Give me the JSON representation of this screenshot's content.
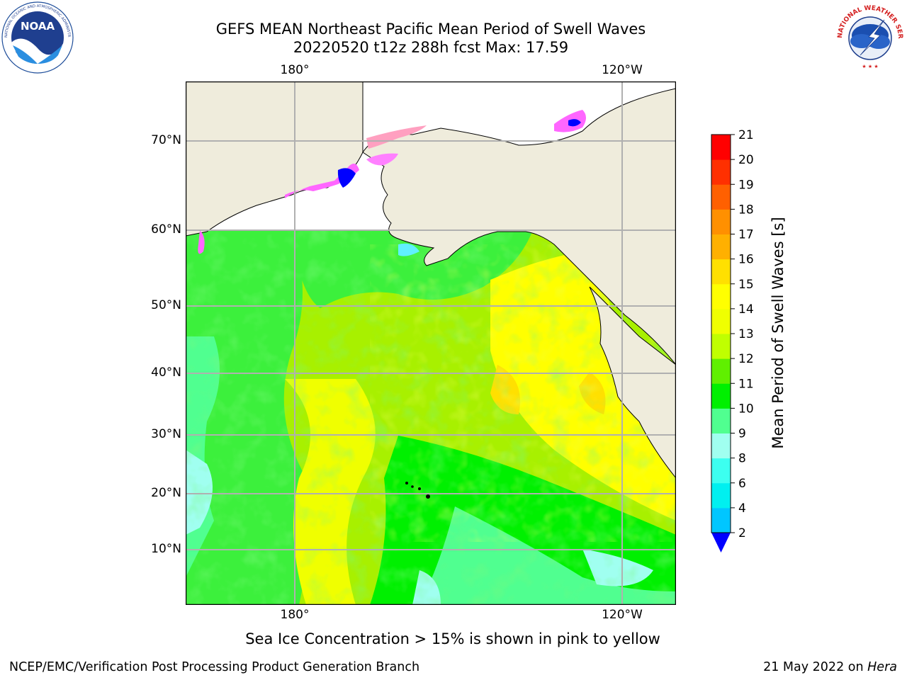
{
  "header": {
    "title_line1": "GEFS MEAN Northeast Pacific Mean Period of Swell Waves",
    "title_line2": "20220520 t12z 288h fcst   Max: 17.59"
  },
  "logos": {
    "noaa_text": "NOAA",
    "noaa_ring_text": "NATIONAL OCEANIC AND ATMOSPHERIC ADMINISTRATION · U.S. DEPARTMENT OF COMMERCE",
    "nws_ring_text": "NATIONAL WEATHER SERVICE"
  },
  "map": {
    "longitude_labels": [
      "180°",
      "120°W"
    ],
    "latitude_labels": [
      "70°N",
      "60°N",
      "50°N",
      "40°N",
      "30°N",
      "20°N",
      "10°N"
    ],
    "land_color": "#efecdc",
    "grid_color": "#b0b0b0"
  },
  "colorbar": {
    "label": "Mean Period of Swell Waves [s]",
    "ticks": [
      "2",
      "4",
      "6",
      "8",
      "9",
      "10",
      "11",
      "12",
      "13",
      "14",
      "15",
      "16",
      "17",
      "18",
      "19",
      "20",
      "21"
    ],
    "colors": [
      "#0a6cff",
      "#00c6ff",
      "#00f0f0",
      "#3cfff0",
      "#a0fff0",
      "#50ff90",
      "#00f000",
      "#60f000",
      "#c0ff00",
      "#f0ff00",
      "#ffff00",
      "#ffe000",
      "#ffb000",
      "#ff9000",
      "#ff6000",
      "#ff3000",
      "#ff0000"
    ],
    "extend_min_color": "#0000ff"
  },
  "footer": {
    "sea_ice_note": "Sea Ice Concentration > 15% is shown in pink to yellow",
    "producer": "NCEP/EMC/Verification Post Processing Product Generation Branch",
    "date_text": "21 May 2022 on ",
    "machine": "Hera"
  }
}
